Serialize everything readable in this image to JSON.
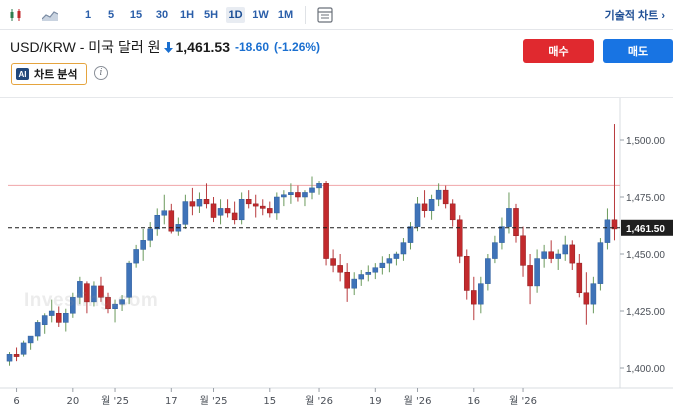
{
  "toolbar": {
    "timeframes": [
      "1",
      "5",
      "15",
      "30",
      "1H",
      "5H",
      "1D",
      "1W",
      "1M"
    ],
    "active_timeframe": "1D",
    "tech_chart_label": "기술적 차트 ›"
  },
  "quote": {
    "pair": "USD/KRW - 미국 달러 원",
    "price": "1,461.53",
    "change": "-18.60",
    "change_pct": "(-1.26%)",
    "direction": "down"
  },
  "buttons": {
    "buy": "매수",
    "sell": "매도"
  },
  "analysis": {
    "badge": "AI",
    "label": "차트 분석",
    "info": "i"
  },
  "watermark": "Investing.com",
  "colors": {
    "up": "#2e7d4f",
    "down": "#d0242b",
    "bull_body": "#3f73b8",
    "bear_body": "#c22a2d",
    "accent": "#1874e3",
    "buy": "#e0292f"
  },
  "chart_data": {
    "type": "candlestick",
    "y_ticks": [
      "1,500.00",
      "1,475.00",
      "1,450.00",
      "1,425.00",
      "1,400.00"
    ],
    "y_tick_values": [
      1500,
      1475,
      1450,
      1425,
      1400
    ],
    "ylim": [
      1392,
      1510
    ],
    "x_ticks": [
      "6",
      "20",
      "월 '25",
      "17",
      "월 '25",
      "15",
      "월 '26",
      "19",
      "월 '26",
      "16",
      "월 '26"
    ],
    "x_tick_index": [
      1,
      9,
      15,
      23,
      29,
      37,
      44,
      52,
      58,
      66,
      73
    ],
    "current_price_label": "1,461.50",
    "current_price": 1461.5,
    "previous_close": 1480.1,
    "candles": [
      [
        1403,
        1407,
        1401,
        1406
      ],
      [
        1406,
        1409,
        1403,
        1405
      ],
      [
        1406,
        1412,
        1405,
        1411
      ],
      [
        1411,
        1414,
        1408,
        1414
      ],
      [
        1414,
        1421,
        1412,
        1420
      ],
      [
        1419,
        1424,
        1415,
        1423
      ],
      [
        1423,
        1430,
        1420,
        1425
      ],
      [
        1424,
        1427,
        1418,
        1420
      ],
      [
        1420,
        1426,
        1416,
        1424
      ],
      [
        1424,
        1433,
        1422,
        1431
      ],
      [
        1431,
        1440,
        1428,
        1438
      ],
      [
        1437,
        1438,
        1424,
        1429
      ],
      [
        1429,
        1438,
        1427,
        1436
      ],
      [
        1436,
        1440,
        1429,
        1431
      ],
      [
        1431,
        1433,
        1424,
        1426
      ],
      [
        1426,
        1430,
        1420,
        1428
      ],
      [
        1428,
        1432,
        1425,
        1430
      ],
      [
        1431,
        1447,
        1428,
        1446
      ],
      [
        1446,
        1454,
        1444,
        1452
      ],
      [
        1452,
        1461,
        1447,
        1456
      ],
      [
        1456,
        1464,
        1453,
        1461
      ],
      [
        1461,
        1470,
        1458,
        1467
      ],
      [
        1467,
        1476,
        1463,
        1469
      ],
      [
        1469,
        1472,
        1459,
        1460
      ],
      [
        1460,
        1466,
        1458,
        1463
      ],
      [
        1463,
        1476,
        1461,
        1473
      ],
      [
        1473,
        1479,
        1467,
        1471
      ],
      [
        1471,
        1477,
        1468,
        1474
      ],
      [
        1474,
        1481,
        1470,
        1472
      ],
      [
        1472,
        1475,
        1464,
        1466
      ],
      [
        1467,
        1474,
        1463,
        1470
      ],
      [
        1470,
        1474,
        1466,
        1468
      ],
      [
        1468,
        1473,
        1463,
        1465
      ],
      [
        1465,
        1477,
        1463,
        1474
      ],
      [
        1474,
        1478,
        1470,
        1472
      ],
      [
        1472,
        1476,
        1466,
        1471
      ],
      [
        1471,
        1474,
        1467,
        1470
      ],
      [
        1470,
        1473,
        1466,
        1468
      ],
      [
        1468,
        1477,
        1465,
        1475
      ],
      [
        1475,
        1478,
        1471,
        1476
      ],
      [
        1476,
        1481,
        1472,
        1477
      ],
      [
        1477,
        1480,
        1473,
        1475
      ],
      [
        1475,
        1478,
        1471,
        1477
      ],
      [
        1477,
        1484,
        1474,
        1479
      ],
      [
        1479,
        1482,
        1476,
        1481
      ],
      [
        1481,
        1482,
        1445,
        1448
      ],
      [
        1448,
        1452,
        1442,
        1445
      ],
      [
        1445,
        1450,
        1438,
        1442
      ],
      [
        1442,
        1446,
        1429,
        1435
      ],
      [
        1435,
        1442,
        1432,
        1439
      ],
      [
        1439,
        1443,
        1436,
        1441
      ],
      [
        1441,
        1445,
        1438,
        1442
      ],
      [
        1442,
        1446,
        1439,
        1444
      ],
      [
        1444,
        1449,
        1441,
        1446
      ],
      [
        1446,
        1450,
        1442,
        1448
      ],
      [
        1448,
        1451,
        1445,
        1450
      ],
      [
        1450,
        1457,
        1447,
        1455
      ],
      [
        1455,
        1464,
        1452,
        1462
      ],
      [
        1462,
        1475,
        1460,
        1472
      ],
      [
        1472,
        1478,
        1466,
        1469
      ],
      [
        1469,
        1476,
        1465,
        1474
      ],
      [
        1474,
        1481,
        1471,
        1478
      ],
      [
        1478,
        1480,
        1470,
        1472
      ],
      [
        1472,
        1474,
        1462,
        1465
      ],
      [
        1465,
        1467,
        1446,
        1449
      ],
      [
        1449,
        1452,
        1430,
        1434
      ],
      [
        1434,
        1440,
        1421,
        1428
      ],
      [
        1428,
        1440,
        1424,
        1437
      ],
      [
        1437,
        1450,
        1434,
        1448
      ],
      [
        1448,
        1458,
        1446,
        1455
      ],
      [
        1455,
        1466,
        1452,
        1462
      ],
      [
        1462,
        1477,
        1459,
        1470
      ],
      [
        1470,
        1472,
        1455,
        1458
      ],
      [
        1458,
        1462,
        1440,
        1445
      ],
      [
        1445,
        1450,
        1428,
        1436
      ],
      [
        1436,
        1452,
        1433,
        1448
      ],
      [
        1448,
        1454,
        1444,
        1451
      ],
      [
        1451,
        1456,
        1446,
        1448
      ],
      [
        1448,
        1452,
        1443,
        1450
      ],
      [
        1450,
        1458,
        1447,
        1454
      ],
      [
        1454,
        1456,
        1443,
        1446
      ],
      [
        1446,
        1450,
        1431,
        1433
      ],
      [
        1433,
        1442,
        1419,
        1428
      ],
      [
        1428,
        1440,
        1424,
        1437
      ],
      [
        1437,
        1457,
        1434,
        1455
      ],
      [
        1455,
        1470,
        1452,
        1465
      ],
      [
        1465,
        1507,
        1456,
        1461
      ]
    ]
  }
}
